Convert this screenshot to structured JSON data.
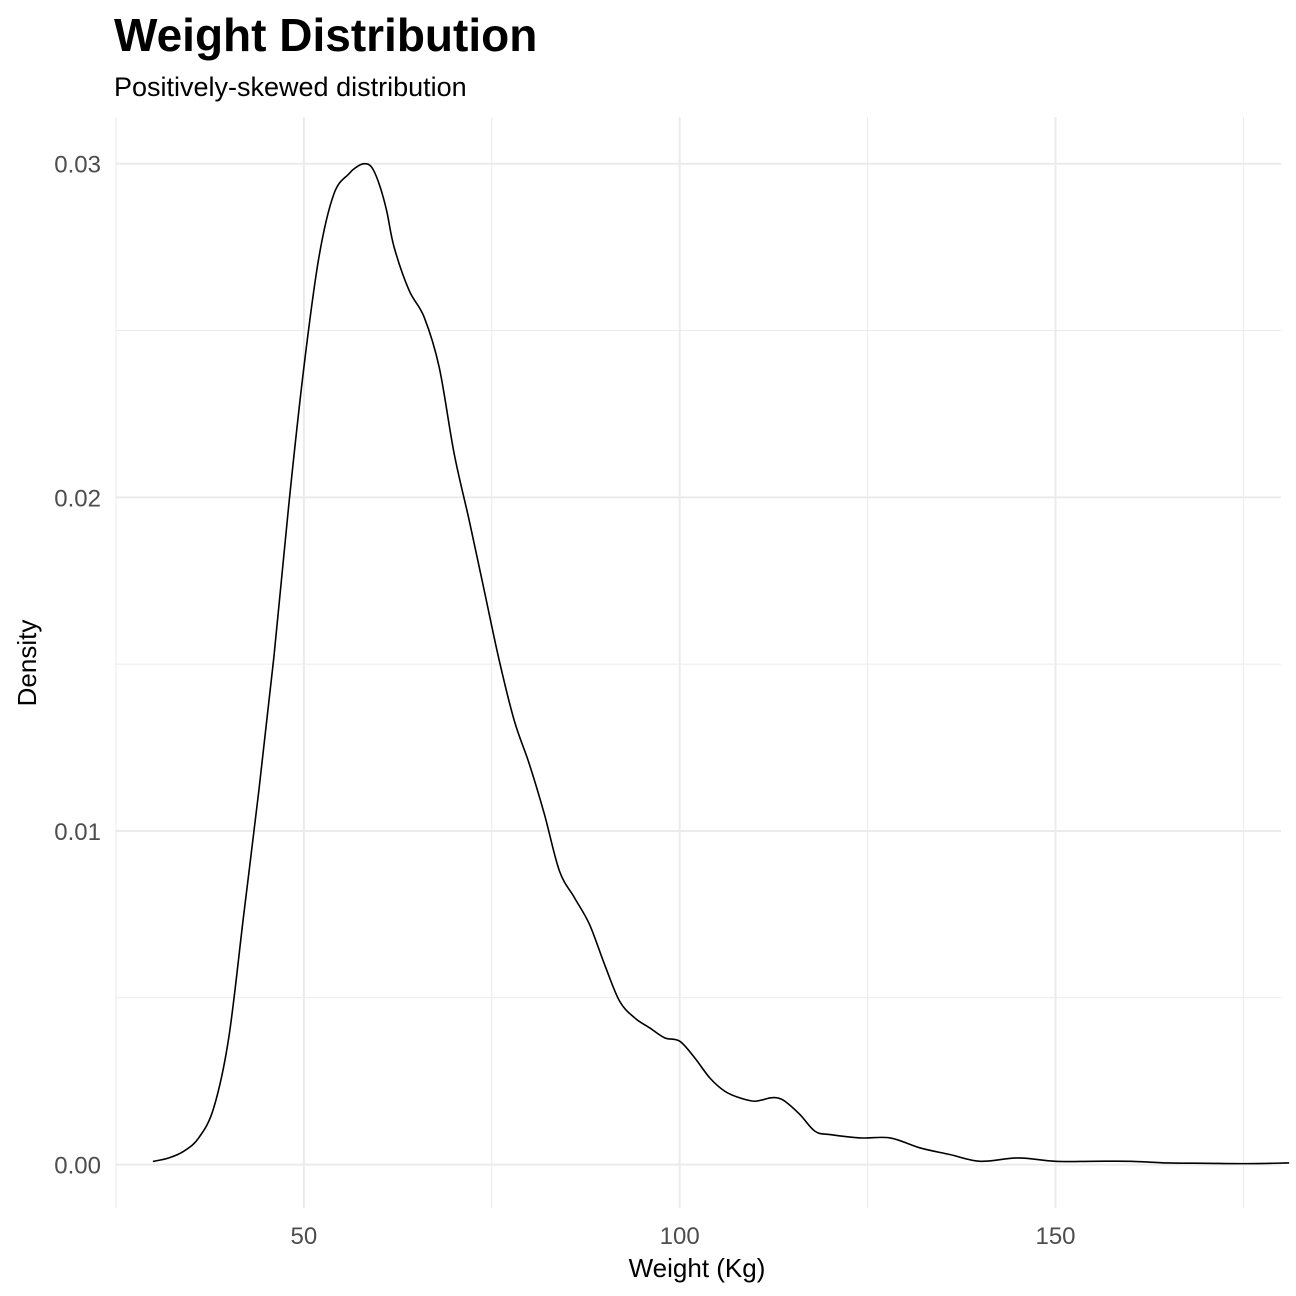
{
  "chart_data": {
    "type": "line",
    "title": "Weight Distribution",
    "subtitle": "Positively-skewed distribution",
    "xlabel": "Weight (Kg)",
    "ylabel": "Density",
    "xlim": [
      25,
      180
    ],
    "ylim": [
      -0.0013,
      0.0314
    ],
    "x_ticks": [
      50,
      100,
      150
    ],
    "x_tick_labels": [
      "50",
      "100",
      "150"
    ],
    "x_minor_ticks": [
      25,
      75,
      125,
      175
    ],
    "y_ticks": [
      0,
      0.01,
      0.02,
      0.03
    ],
    "y_tick_labels": [
      "0.00",
      "0.01",
      "0.02",
      "0.03"
    ],
    "y_minor_ticks": [
      0.005,
      0.015,
      0.025
    ],
    "grid": true,
    "legend": "none",
    "line_color": "#000000",
    "grid_color": "#ebebeb",
    "series": [
      {
        "x": [
          30,
          32,
          34,
          36,
          38,
          40,
          42,
          44,
          46,
          48,
          50,
          52,
          54,
          56,
          57,
          58,
          59,
          60,
          61,
          62,
          64,
          66,
          68,
          70,
          72,
          74,
          76,
          78,
          80,
          82,
          84,
          86,
          88,
          90,
          92,
          94,
          96,
          98,
          100,
          102,
          104,
          106,
          108,
          110,
          112,
          113,
          114,
          116,
          118,
          120,
          124,
          128,
          132,
          136,
          140,
          145,
          150,
          155,
          160,
          165,
          170,
          175,
          181
        ],
        "values": [
          0.0001,
          0.0002,
          0.0004,
          0.0008,
          0.0017,
          0.0038,
          0.0075,
          0.0112,
          0.0152,
          0.0198,
          0.0239,
          0.0272,
          0.0291,
          0.0297,
          0.0299,
          0.03,
          0.0299,
          0.0294,
          0.0286,
          0.0275,
          0.0262,
          0.0254,
          0.0239,
          0.0213,
          0.0193,
          0.0172,
          0.0151,
          0.0133,
          0.012,
          0.0105,
          0.0088,
          0.008,
          0.0072,
          0.006,
          0.0049,
          0.0044,
          0.0041,
          0.0038,
          0.0037,
          0.0032,
          0.0026,
          0.0022,
          0.002,
          0.0019,
          0.002,
          0.002,
          0.0019,
          0.0015,
          0.001,
          0.0009,
          0.0008,
          0.0008,
          0.0005,
          0.0003,
          0.0001,
          0.0002,
          0.0001,
          0.0001,
          0.0001,
          5e-05,
          4e-05,
          3e-05,
          5e-05
        ]
      }
    ]
  }
}
